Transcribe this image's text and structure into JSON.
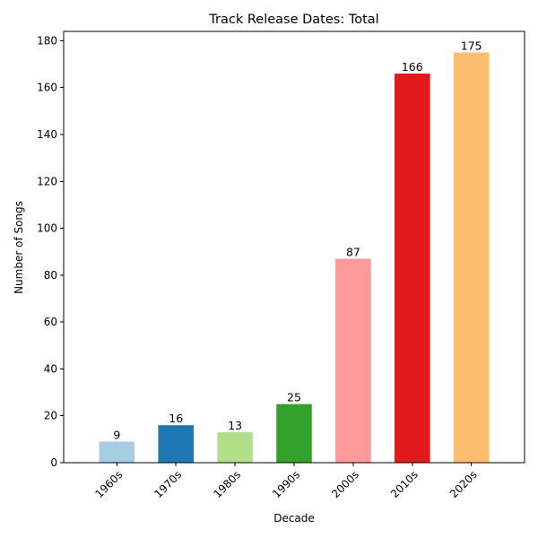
{
  "chart_data": {
    "type": "bar",
    "title": "Track Release Dates: Total",
    "xlabel": "Decade",
    "ylabel": "Number of Songs",
    "categories": [
      "1960s",
      "1970s",
      "1980s",
      "1990s",
      "2000s",
      "2010s",
      "2020s"
    ],
    "values": [
      9,
      16,
      13,
      25,
      87,
      166,
      175
    ],
    "colors": [
      "#a6cee3",
      "#1f78b4",
      "#b2df8a",
      "#33a02c",
      "#fb9a99",
      "#e31a1c",
      "#fdbf6f"
    ],
    "ylim": [
      0,
      184
    ],
    "yticks": [
      0,
      20,
      40,
      60,
      80,
      100,
      120,
      140,
      160,
      180
    ],
    "grid": false,
    "legend": "none",
    "x_tick_rotation_deg": 45
  }
}
